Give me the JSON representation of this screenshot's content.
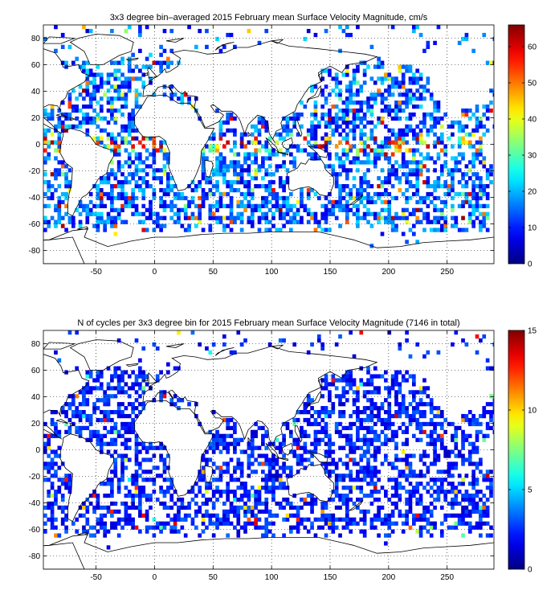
{
  "chart_data": [
    {
      "type": "heatmap",
      "title": "3x3 degree bin–averaged 2015 February mean Surface Velocity Magnitude, cm/s",
      "xlim": [
        -95,
        290
      ],
      "ylim": [
        -90,
        90
      ],
      "xticks": [
        "-50",
        "0",
        "50",
        "100",
        "150",
        "200",
        "250"
      ],
      "xtick_values": [
        -50,
        0,
        50,
        100,
        150,
        200,
        250
      ],
      "yticks": [
        "80",
        "60",
        "40",
        "20",
        "0",
        "-20",
        "-40",
        "-60",
        "-80"
      ],
      "ytick_values": [
        80,
        60,
        40,
        20,
        0,
        -20,
        -40,
        -60,
        -80
      ],
      "bin_size_deg": 3,
      "grid": true,
      "colorbar": {
        "range": [
          0,
          66
        ],
        "ticks": [
          "0",
          "10",
          "20",
          "30",
          "40",
          "50",
          "60"
        ],
        "tick_values": [
          0,
          10,
          20,
          30,
          40,
          50,
          60
        ],
        "colormap": "jet"
      },
      "value_distribution": "Typical bins 5–25 cm/s; highest values (40–66 cm/s) along the equatorial band and western boundary currents (Gulf Stream, Agulhas, Kuroshio)"
    },
    {
      "type": "heatmap",
      "title": "N of cycles per 3x3 degree bin for 2015 February mean Surface Velocity Magnitude (7146 in total)",
      "xlim": [
        -95,
        290
      ],
      "ylim": [
        -90,
        90
      ],
      "xticks": [
        "-50",
        "0",
        "50",
        "100",
        "150",
        "200",
        "250"
      ],
      "xtick_values": [
        -50,
        0,
        50,
        100,
        150,
        200,
        250
      ],
      "yticks": [
        "80",
        "60",
        "40",
        "20",
        "0",
        "-20",
        "-40",
        "-60",
        "-80"
      ],
      "ytick_values": [
        80,
        60,
        40,
        20,
        0,
        -20,
        -40,
        -60,
        -80
      ],
      "bin_size_deg": 3,
      "grid": true,
      "total_cycles": 7146,
      "colorbar": {
        "range": [
          0,
          15
        ],
        "ticks": [
          "0",
          "5",
          "10",
          "15"
        ],
        "tick_values": [
          0,
          5,
          10,
          15
        ],
        "colormap": "jet"
      },
      "value_distribution": "Most bins contain 1–3 cycles; a few bins reach 8–14 cycles (Mediterranean, Red Sea, northwest Pacific)"
    }
  ]
}
